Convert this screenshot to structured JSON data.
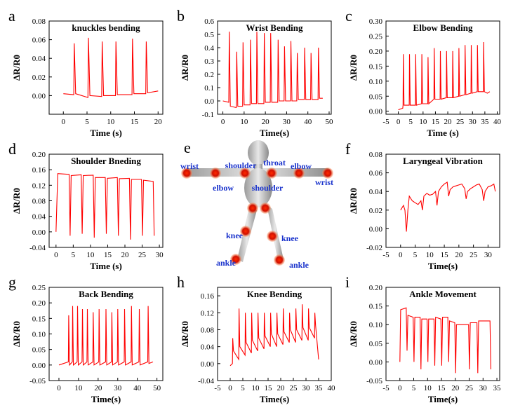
{
  "chart_data": [
    {
      "type": "line",
      "panel": "a",
      "title": "knuckles bending",
      "xlabel": "Time (s)",
      "ylabel": "ΔR/R0",
      "color": "#ff0000",
      "xlim": [
        -3,
        21
      ],
      "xticks": [
        0,
        5,
        10,
        15,
        20
      ],
      "ylim": [
        -0.02,
        0.08
      ],
      "yticks": [
        {
          "value": 0,
          "label": "0.00"
        },
        0.02,
        0.04,
        0.06,
        0.08
      ],
      "x": [
        0,
        2.2,
        2.3,
        2.6,
        5.2,
        5.3,
        5.6,
        8.1,
        8.2,
        8.5,
        11,
        11.1,
        11.4,
        14.5,
        14.6,
        14.9,
        17.4,
        17.5,
        17.8,
        20
      ],
      "values": [
        0.002,
        0.001,
        0.056,
        0.002,
        -0.002,
        0.062,
        0.0,
        -0.001,
        0.058,
        0.0,
        0.0,
        0.058,
        0.001,
        0.001,
        0.061,
        0.002,
        0.002,
        0.058,
        0.003,
        0.005
      ]
    },
    {
      "type": "line",
      "panel": "b",
      "title": "Wrist Bending",
      "xlabel": "Time(s)",
      "ylabel": "ΔR/R0",
      "color": "#ff0000",
      "xlim": [
        -2.5,
        51
      ],
      "xticks": [
        0,
        10,
        20,
        30,
        40,
        50
      ],
      "ylim": [
        -0.1,
        0.6
      ],
      "yticks": [
        -0.1,
        {
          "value": 0,
          "label": "0.0"
        },
        0.1,
        0.2,
        0.3,
        0.4,
        0.5,
        0.6
      ],
      "x": [
        0,
        2.8,
        3,
        3.5,
        6.3,
        6.5,
        7,
        9.3,
        9.5,
        10,
        12.8,
        13,
        13.5,
        15.8,
        16,
        16.5,
        19.3,
        19.5,
        20,
        22.3,
        22.5,
        23,
        25.8,
        26,
        26.5,
        28.8,
        29,
        29.5,
        31.8,
        32,
        32.5,
        34.8,
        35,
        35.5,
        38.3,
        38.5,
        39,
        41.3,
        41.5,
        42,
        44.8,
        45,
        45.5,
        47
      ],
      "values": [
        0,
        -0.01,
        0.52,
        -0.04,
        -0.05,
        0.37,
        -0.04,
        -0.04,
        0.44,
        -0.03,
        -0.03,
        0.46,
        -0.02,
        -0.02,
        0.52,
        -0.02,
        -0.02,
        0.51,
        -0.01,
        -0.01,
        0.51,
        -0.01,
        -0.01,
        0.46,
        0.0,
        0.0,
        0.41,
        0.0,
        0.0,
        0.45,
        0.0,
        0.0,
        0.36,
        0.01,
        0.01,
        0.4,
        0.01,
        0.01,
        0.36,
        0.01,
        0.01,
        0.4,
        0.02,
        0.02
      ]
    },
    {
      "type": "line",
      "panel": "c",
      "title": "Elbow Bending",
      "xlabel": "Time (s)",
      "ylabel": "ΔR/R0",
      "color": "#ff0000",
      "xlim": [
        -5,
        41
      ],
      "xticks": [
        -5,
        0,
        5,
        10,
        15,
        20,
        25,
        30,
        35,
        40
      ],
      "ylim": [
        -0.01,
        0.3
      ],
      "yticks": [
        {
          "value": 0,
          "label": "0.00"
        },
        0.05,
        {
          "value": 0.1,
          "label": "0.10"
        },
        0.15,
        {
          "value": 0.2,
          "label": "0.20"
        },
        0.25,
        {
          "value": 0.3,
          "label": "0.30"
        }
      ],
      "x": [
        0,
        1.8,
        1.9,
        2,
        2.3,
        4.4,
        4.5,
        4.8,
        6.9,
        7,
        7.3,
        9.4,
        9.5,
        9.8,
        11.9,
        12,
        12.3,
        14.4,
        14.5,
        14.8,
        16.9,
        17,
        17.3,
        19.4,
        19.5,
        19.8,
        21.9,
        22,
        22.3,
        24.4,
        24.5,
        24.8,
        26.9,
        27,
        27.3,
        29.4,
        29.5,
        29.8,
        31.9,
        32,
        32.3,
        34.4,
        34.5,
        34.8,
        36,
        37
      ],
      "values": [
        0.005,
        0.01,
        0.02,
        0.19,
        0.02,
        0.02,
        0.19,
        0.02,
        0.02,
        0.19,
        0.02,
        0.025,
        0.19,
        0.025,
        0.025,
        0.18,
        0.025,
        0.04,
        0.21,
        0.04,
        0.04,
        0.2,
        0.04,
        0.045,
        0.2,
        0.045,
        0.045,
        0.2,
        0.045,
        0.05,
        0.21,
        0.05,
        0.055,
        0.22,
        0.055,
        0.06,
        0.22,
        0.06,
        0.065,
        0.22,
        0.065,
        0.065,
        0.23,
        0.065,
        0.06,
        0.065
      ]
    },
    {
      "type": "line",
      "panel": "d",
      "title": "Shoulder Bneding",
      "xlabel": "Time (s)",
      "ylabel": "ΔR/R0",
      "color": "#ff0000",
      "xlim": [
        -2,
        31
      ],
      "xticks": [
        0,
        5,
        10,
        15,
        20,
        25,
        30
      ],
      "ylim": [
        -0.04,
        0.2
      ],
      "yticks": [
        -0.04,
        {
          "value": 0,
          "label": "0.00"
        },
        0.04,
        0.08,
        0.12,
        0.16,
        {
          "value": 0.2,
          "label": "0.20"
        }
      ],
      "x": [
        0,
        0.5,
        3.8,
        4.1,
        4.4,
        7.3,
        7.6,
        7.9,
        10.8,
        11.1,
        11.4,
        14.3,
        14.6,
        14.9,
        17.8,
        18.1,
        18.4,
        21.3,
        21.6,
        21.9,
        24.8,
        25.1,
        25.4,
        28.2,
        28.5
      ],
      "values": [
        0,
        0.15,
        0.148,
        -0.01,
        0.145,
        0.147,
        -0.005,
        0.145,
        0.146,
        -0.015,
        0.14,
        0.14,
        -0.005,
        0.138,
        0.14,
        -0.01,
        0.137,
        0.138,
        -0.02,
        0.135,
        0.135,
        -0.01,
        0.133,
        0.13,
        -0.01
      ]
    },
    {
      "type": "line",
      "panel": "f",
      "title": "Laryngeal Vibration",
      "xlabel": "Time(s)",
      "ylabel": "ΔR/R0",
      "color": "#ff0000",
      "xlim": [
        -5,
        34
      ],
      "xticks": [
        -5,
        0,
        5,
        10,
        15,
        20,
        25,
        30
      ],
      "ylim": [
        -0.02,
        0.08
      ],
      "yticks": [
        -0.02,
        {
          "value": 0,
          "label": "0.00"
        },
        0.02,
        0.04,
        0.06,
        0.08
      ],
      "x": [
        0,
        1,
        1.5,
        2,
        2.5,
        3,
        4,
        5,
        6,
        7,
        7.5,
        8,
        9,
        10,
        11,
        12,
        12.5,
        13,
        14,
        15,
        16,
        16.5,
        17,
        18,
        19,
        20,
        21,
        22,
        22.5,
        23,
        24,
        25,
        26,
        27,
        28,
        28.5,
        29,
        30,
        31,
        32,
        32.5
      ],
      "values": [
        0.02,
        0.025,
        0.02,
        -0.003,
        0.02,
        0.035,
        0.03,
        0.028,
        0.026,
        0.03,
        0.02,
        0.035,
        0.038,
        0.036,
        0.037,
        0.04,
        0.025,
        0.04,
        0.045,
        0.048,
        0.05,
        0.035,
        0.042,
        0.045,
        0.046,
        0.047,
        0.048,
        0.043,
        0.032,
        0.04,
        0.043,
        0.045,
        0.047,
        0.048,
        0.042,
        0.03,
        0.04,
        0.045,
        0.046,
        0.048,
        0.04
      ]
    },
    {
      "type": "line",
      "panel": "g",
      "title": "Back Bending",
      "xlabel": "Time(s)",
      "ylabel": "ΔR/R0",
      "color": "#ff0000",
      "xlim": [
        -5,
        53
      ],
      "xticks": [
        0,
        10,
        20,
        30,
        40,
        50
      ],
      "ylim": [
        -0.05,
        0.25
      ],
      "yticks": [
        -0.05,
        {
          "value": 0,
          "label": "0.00"
        },
        0.05,
        {
          "value": 0.1,
          "label": "0.10"
        },
        0.15,
        {
          "value": 0.2,
          "label": "0.20"
        },
        0.25
      ],
      "x": [
        0,
        4.8,
        5,
        5.4,
        6.8,
        7,
        7.4,
        9.3,
        9.5,
        9.9,
        11.8,
        12,
        12.4,
        14.3,
        14.5,
        14.9,
        17.3,
        17.5,
        17.9,
        20.3,
        20.5,
        20.9,
        23.8,
        24,
        24.4,
        26.8,
        27,
        27.4,
        29.8,
        30,
        30.4,
        33.3,
        33.5,
        33.9,
        36.8,
        37,
        37.4,
        40.8,
        41,
        41.4,
        45.3,
        45.5,
        45.9,
        48
      ],
      "values": [
        0,
        0.01,
        0.16,
        0.0,
        0.01,
        0.19,
        0.0,
        0.01,
        0.19,
        0.0,
        0.01,
        0.18,
        0.0,
        0.01,
        0.18,
        0.0,
        0.01,
        0.17,
        0.0,
        0.01,
        0.18,
        0.0,
        0.01,
        0.18,
        0.0,
        0.01,
        0.17,
        0.0,
        0.01,
        0.18,
        0.0,
        0.01,
        0.18,
        0.0,
        0.01,
        0.19,
        0.0,
        0.01,
        0.18,
        0.0,
        0.01,
        0.19,
        0.005,
        0.01
      ]
    },
    {
      "type": "line",
      "panel": "h",
      "title": "Knee Bending",
      "xlabel": "Time(s)",
      "ylabel": "ΔR/R0",
      "color": "#ff0000",
      "xlim": [
        -5,
        40
      ],
      "xticks": [
        -5,
        0,
        5,
        10,
        15,
        20,
        25,
        30,
        35,
        40
      ],
      "ylim": [
        -0.04,
        0.18
      ],
      "yticks": [
        -0.04,
        {
          "value": 0,
          "label": "0.00"
        },
        0.04,
        0.08,
        0.12,
        0.16
      ],
      "x": [
        0,
        0.9,
        1,
        1.3,
        3.4,
        3.5,
        3.8,
        5.9,
        6,
        6.3,
        8.4,
        8.5,
        8.8,
        10.9,
        11,
        11.3,
        13.4,
        13.5,
        13.8,
        15.9,
        16,
        16.3,
        18.4,
        18.5,
        18.8,
        20.9,
        21,
        21.3,
        23.4,
        23.5,
        23.8,
        25.9,
        26,
        26.3,
        28.4,
        28.5,
        28.8,
        30.9,
        31,
        31.3,
        33.4,
        33.5,
        33.8,
        35
      ],
      "values": [
        -0.005,
        0,
        0.06,
        0.03,
        0.01,
        0.13,
        0.04,
        0.02,
        0.12,
        0.05,
        0.025,
        0.12,
        0.055,
        0.03,
        0.12,
        0.06,
        0.035,
        0.12,
        0.065,
        0.04,
        0.12,
        0.07,
        0.04,
        0.12,
        0.07,
        0.045,
        0.13,
        0.075,
        0.05,
        0.12,
        0.08,
        0.05,
        0.13,
        0.08,
        0.055,
        0.14,
        0.085,
        0.055,
        0.13,
        0.085,
        0.06,
        0.12,
        0.09,
        0.01
      ]
    },
    {
      "type": "line",
      "panel": "i",
      "title": "Ankle Movement",
      "xlabel": "Time(s)",
      "ylabel": "ΔR/R0",
      "color": "#ff0000",
      "xlim": [
        -5,
        36
      ],
      "xticks": [
        -5,
        0,
        5,
        10,
        15,
        20,
        25,
        30,
        35
      ],
      "ylim": [
        -0.05,
        0.2
      ],
      "yticks": [
        -0.05,
        {
          "value": 0,
          "label": "0.00"
        },
        0.05,
        {
          "value": 0.1,
          "label": "0.10"
        },
        0.15,
        {
          "value": 0.2,
          "label": "0.20"
        }
      ],
      "x": [
        0,
        0.3,
        2.3,
        2.6,
        2.9,
        4.8,
        5.1,
        5.4,
        7.3,
        7.6,
        7.9,
        9.8,
        10.1,
        10.4,
        12.3,
        12.6,
        12.9,
        14.8,
        15.1,
        15.4,
        17.3,
        17.6,
        17.9,
        19.8,
        20.1,
        20.4,
        24.8,
        25.1,
        25.4,
        27.8,
        28.1,
        28.4,
        30,
        32.5,
        32.8
      ],
      "values": [
        0,
        0.14,
        0.145,
        0.03,
        0.125,
        0.12,
        0.0,
        0.12,
        0.12,
        -0.02,
        0.115,
        0.115,
        0.0,
        0.115,
        0.115,
        -0.01,
        0.12,
        0.115,
        -0.01,
        0.12,
        0.12,
        0.0,
        0.11,
        0.105,
        -0.03,
        0.1,
        0.1,
        -0.02,
        0.105,
        0.105,
        -0.03,
        0.11,
        0.11,
        0.11,
        -0.02
      ]
    }
  ],
  "diagram": {
    "panel": "e",
    "labels": [
      "wrist",
      "elbow",
      "shoulder",
      "throat",
      "elbow",
      "shoulder",
      "wrist",
      "knee",
      "knee",
      "ankle",
      "ankle"
    ]
  }
}
